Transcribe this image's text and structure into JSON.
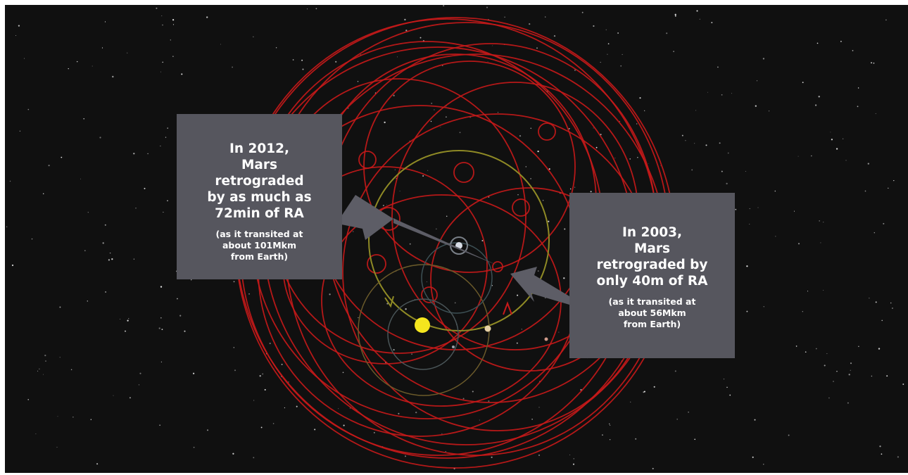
{
  "callouts": {
    "y2012": {
      "headline": "In 2012,\nMars\nretrograded\nby as much as\n72min of RA",
      "detail": "(as it transited at\nabout 101Mkm\nfrom Earth)"
    },
    "y2003": {
      "headline": "In 2003,\nMars\nretrograded by\nonly 40m of RA",
      "detail": "(as it transited at\nabout 56Mkm\nfrom Earth)"
    }
  },
  "colors": {
    "background": "#101010",
    "mars_path": "#c8191a",
    "earth_orbit": "#8f8a25",
    "callout_box": "#56565e",
    "pointer": "#5d5d66",
    "sun": "#f5e61e"
  },
  "bodies": [
    "sun",
    "earth",
    "mars",
    "moon"
  ]
}
